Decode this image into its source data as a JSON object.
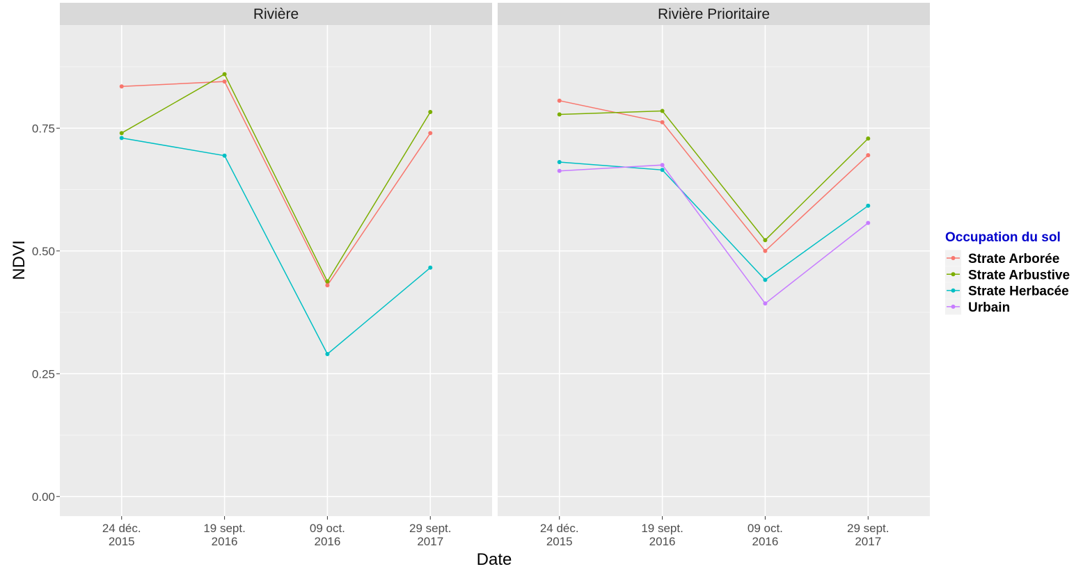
{
  "chart_data": {
    "type": "line",
    "xlabel": "Date",
    "ylabel": "NDVI",
    "ylim": [
      -0.04,
      0.96
    ],
    "yticks": [
      "0.00",
      "0.25",
      "0.50",
      "0.75"
    ],
    "ytick_values": [
      0.0,
      0.25,
      0.5,
      0.75
    ],
    "categories": [
      [
        "24 déc.",
        "2015"
      ],
      [
        "19 sept.",
        "2016"
      ],
      [
        "09 oct.",
        "2016"
      ],
      [
        "29 sept.",
        "2017"
      ]
    ],
    "grid": true,
    "legend": {
      "title": "Occupation du sol",
      "title_color": "#0000cc",
      "position": "right",
      "entries": [
        {
          "label": "Strate Arborée",
          "color": "#F8766D"
        },
        {
          "label": "Strate Arbustive",
          "color": "#7CAE00"
        },
        {
          "label": "Strate Herbacée",
          "color": "#00BFC4"
        },
        {
          "label": "Urbain",
          "color": "#C77CFF"
        }
      ]
    },
    "panels": [
      {
        "title": "Rivière",
        "series": [
          {
            "name": "Strate Arborée",
            "color": "#F8766D",
            "values": [
              0.835,
              0.845,
              0.43,
              0.74
            ]
          },
          {
            "name": "Strate Arbustive",
            "color": "#7CAE00",
            "values": [
              0.74,
              0.86,
              0.438,
              0.783
            ]
          },
          {
            "name": "Strate Herbacée",
            "color": "#00BFC4",
            "values": [
              0.73,
              0.694,
              0.29,
              0.466
            ]
          }
        ]
      },
      {
        "title": "Rivière Prioritaire",
        "series": [
          {
            "name": "Strate Arborée",
            "color": "#F8766D",
            "values": [
              0.806,
              0.762,
              0.5,
              0.695
            ]
          },
          {
            "name": "Strate Arbustive",
            "color": "#7CAE00",
            "values": [
              0.778,
              0.785,
              0.522,
              0.729
            ]
          },
          {
            "name": "Strate Herbacée",
            "color": "#00BFC4",
            "values": [
              0.681,
              0.665,
              0.441,
              0.592
            ]
          },
          {
            "name": "Urbain",
            "color": "#C77CFF",
            "values": [
              0.663,
              0.675,
              0.393,
              0.557
            ]
          }
        ]
      }
    ]
  }
}
